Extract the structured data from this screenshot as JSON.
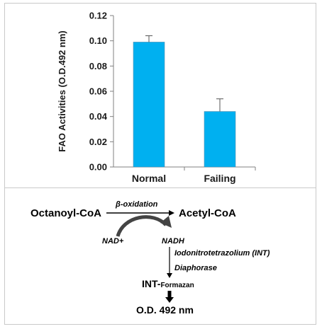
{
  "chart_data": {
    "type": "bar",
    "categories": [
      "Normal",
      "Failing"
    ],
    "values": [
      0.099,
      0.044
    ],
    "error": [
      0.005,
      0.01
    ],
    "ylabel": "FAO Activities (O.D.492 nm)",
    "xlabel": "",
    "ylim": [
      0,
      0.12
    ],
    "yticks": [
      "0.00",
      "0.02",
      "0.04",
      "0.06",
      "0.08",
      "0.10",
      "0.12"
    ],
    "bar_color": "#00b0f0",
    "grid": false
  },
  "scheme": {
    "substrate": "Octanoyl-CoA",
    "product": "Acetyl-CoA",
    "reaction": "β-oxidation",
    "cofactor_in": "NAD+",
    "cofactor_out": "NADH",
    "reagent": "Iodonitrotetrazolium (INT)",
    "enzyme": "Diaphorase",
    "formazan_prefix": "INT-",
    "formazan_suffix": "Formazan",
    "readout": "O.D. 492 nm"
  }
}
